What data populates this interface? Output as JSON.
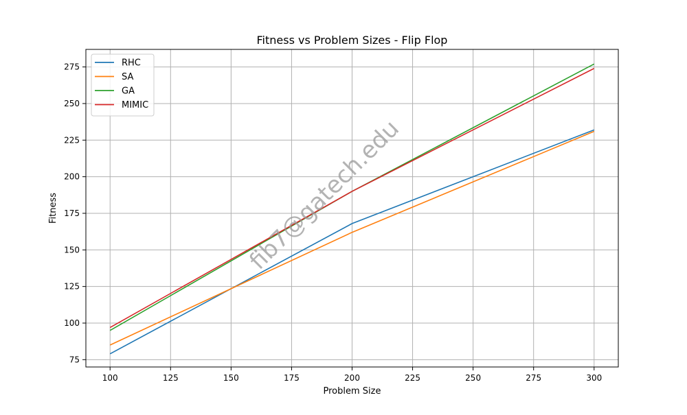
{
  "chart_data": {
    "type": "line",
    "title": "Fitness vs Problem Sizes - Flip Flop",
    "xlabel": "Problem Size",
    "ylabel": "Fitness",
    "x": [
      100,
      200,
      300
    ],
    "xlim": [
      90,
      310
    ],
    "ylim": [
      70,
      287
    ],
    "xticks": [
      100,
      125,
      150,
      175,
      200,
      225,
      250,
      275,
      300
    ],
    "yticks": [
      75,
      100,
      125,
      150,
      175,
      200,
      225,
      250,
      275
    ],
    "grid": true,
    "legend_position": "top-left",
    "series": [
      {
        "name": "RHC",
        "color": "#1f77b4",
        "values": [
          79,
          168,
          232
        ]
      },
      {
        "name": "SA",
        "color": "#ff7f0e",
        "values": [
          85,
          162,
          231
        ]
      },
      {
        "name": "GA",
        "color": "#2ca02c",
        "values": [
          95,
          190,
          277
        ]
      },
      {
        "name": "MIMIC",
        "color": "#d62728",
        "values": [
          97,
          190,
          274
        ]
      }
    ],
    "watermark": "fib7@gatech.edu"
  }
}
